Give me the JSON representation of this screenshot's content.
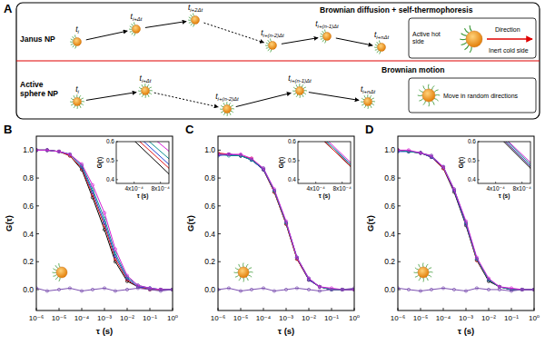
{
  "diagram": {
    "label": "A",
    "time_symbol": "t",
    "rows": [
      {
        "name": "Janus NP",
        "process": "Brownian diffusion + self-thermophoresis",
        "times": [
          "i",
          "i+Δt",
          "i+2Δt",
          "i+(n-2)Δt",
          "i+(n-1)Δt",
          "i+nΔt"
        ],
        "key": [
          "Active hot side",
          "Direction",
          "Inert cold side"
        ]
      },
      {
        "name": "Active sphere NP",
        "process": "Brownian motion",
        "times": [
          "i",
          "i+Δt",
          "i+(n-2)Δt",
          "i+(n-1)Δt",
          "i+nΔt"
        ],
        "key": [
          "Move in random directions"
        ]
      }
    ]
  },
  "chart_data": [
    {
      "type": "line",
      "title": "B",
      "x_label": "τ (s)",
      "y_label": "G(τ)",
      "log": "x",
      "marker": "circle",
      "x": [
        1e-06,
        3e-06,
        1e-05,
        3e-05,
        0.0001,
        0.0003,
        0.001,
        0.003,
        0.01,
        0.03,
        0.1,
        0.3,
        1
      ],
      "xlim": [
        1e-06,
        1
      ],
      "xticks": [
        {
          "value": 1e-06,
          "label": "10⁻⁶"
        },
        {
          "value": 1e-05,
          "label": "10⁻⁵"
        },
        {
          "value": 0.0001,
          "label": "10⁻⁴"
        },
        {
          "value": 0.001,
          "label": "10⁻³"
        },
        {
          "value": 0.01,
          "label": "10⁻²"
        },
        {
          "value": 0.1,
          "label": "10⁻¹"
        },
        {
          "value": 1,
          "label": "10⁰"
        }
      ],
      "ylim": [
        -0.15,
        1.1
      ],
      "yticks": [
        {
          "value": 0,
          "label": "0.0"
        },
        0.2,
        0.4,
        0.6,
        0.8,
        {
          "value": 1,
          "label": "1.0"
        }
      ],
      "series": [
        {
          "color": "#000000",
          "values": [
            1.0,
            1.0,
            0.99,
            0.96,
            0.86,
            0.66,
            0.43,
            0.2,
            0.06,
            0.02,
            0.0,
            0.0,
            0.0
          ]
        },
        {
          "color": "#e41a1c",
          "values": [
            1.0,
            1.0,
            0.99,
            0.96,
            0.87,
            0.68,
            0.46,
            0.22,
            0.07,
            0.02,
            0.0,
            0.0,
            0.0
          ]
        },
        {
          "color": "#1f3fd6",
          "values": [
            1.0,
            1.0,
            0.99,
            0.97,
            0.88,
            0.7,
            0.48,
            0.24,
            0.08,
            0.02,
            0.01,
            0.0,
            0.0
          ]
        },
        {
          "color": "#0a8f8f",
          "values": [
            1.0,
            1.0,
            0.99,
            0.97,
            0.89,
            0.72,
            0.51,
            0.26,
            0.09,
            0.03,
            0.01,
            0.0,
            0.0
          ]
        },
        {
          "color": "#d61fd6",
          "values": [
            1.0,
            1.0,
            0.99,
            0.97,
            0.9,
            0.75,
            0.55,
            0.29,
            0.1,
            0.03,
            0.01,
            0.0,
            0.0
          ]
        },
        {
          "color": "#7b4fb0",
          "values": [
            0.01,
            -0.01,
            0.0,
            0.01,
            -0.01,
            0.0,
            0.01,
            -0.01,
            0.0,
            0.01,
            0.0,
            -0.01,
            0.0
          ]
        }
      ],
      "inset": {
        "x_label": "τ (s)",
        "y_label": "G(τ)",
        "log": "x",
        "xlim": [
          0.00025,
          0.001
        ],
        "ylim": [
          0.38,
          0.6
        ],
        "xticks": [
          {
            "value": 0.0004,
            "label": "4x10⁻⁴"
          },
          {
            "value": 0.0008,
            "label": "8x10⁻⁴"
          }
        ],
        "yticks": [
          0.4,
          0.5,
          0.6
        ]
      }
    },
    {
      "type": "line",
      "title": "C",
      "x_label": "τ (s)",
      "y_label": "G(τ)",
      "log": "x",
      "marker": "circle",
      "x": [
        1e-06,
        3e-06,
        1e-05,
        3e-05,
        0.0001,
        0.0003,
        0.001,
        0.003,
        0.01,
        0.03,
        0.1,
        0.3,
        1
      ],
      "xlim": [
        1e-06,
        1
      ],
      "xticks": [
        {
          "value": 1e-06,
          "label": "10⁻⁶"
        },
        {
          "value": 1e-05,
          "label": "10⁻⁵"
        },
        {
          "value": 0.0001,
          "label": "10⁻⁴"
        },
        {
          "value": 0.001,
          "label": "10⁻³"
        },
        {
          "value": 0.01,
          "label": "10⁻²"
        },
        {
          "value": 0.1,
          "label": "10⁻¹"
        },
        {
          "value": 1,
          "label": "10⁰"
        }
      ],
      "ylim": [
        -0.15,
        1.1
      ],
      "yticks": [
        {
          "value": 0,
          "label": "0.0"
        },
        0.2,
        0.4,
        0.6,
        0.8,
        {
          "value": 1,
          "label": "1.0"
        }
      ],
      "series": [
        {
          "color": "#000000",
          "values": [
            0.97,
            0.97,
            0.96,
            0.93,
            0.86,
            0.7,
            0.47,
            0.22,
            0.07,
            0.02,
            0.0,
            0.0,
            0.0
          ]
        },
        {
          "color": "#e41a1c",
          "values": [
            0.98,
            0.97,
            0.96,
            0.94,
            0.86,
            0.7,
            0.47,
            0.22,
            0.07,
            0.02,
            0.0,
            0.0,
            0.0
          ]
        },
        {
          "color": "#1f3fd6",
          "values": [
            0.96,
            0.97,
            0.96,
            0.93,
            0.86,
            0.71,
            0.48,
            0.23,
            0.07,
            0.02,
            0.0,
            0.0,
            0.0
          ]
        },
        {
          "color": "#0a8f8f",
          "values": [
            0.97,
            0.96,
            0.96,
            0.93,
            0.87,
            0.71,
            0.48,
            0.23,
            0.08,
            0.02,
            0.0,
            0.0,
            0.0
          ]
        },
        {
          "color": "#d61fd6",
          "values": [
            0.97,
            0.97,
            0.97,
            0.94,
            0.87,
            0.72,
            0.49,
            0.23,
            0.08,
            0.02,
            0.01,
            0.0,
            0.0
          ]
        },
        {
          "color": "#7b4fb0",
          "values": [
            0.0,
            0.01,
            -0.01,
            0.0,
            0.01,
            -0.01,
            0.0,
            0.01,
            0.0,
            -0.01,
            0.0,
            0.0,
            0.01
          ]
        }
      ],
      "inset": {
        "x_label": "τ (s)",
        "y_label": "G(τ)",
        "log": "x",
        "xlim": [
          0.00025,
          0.001
        ],
        "ylim": [
          0.38,
          0.6
        ],
        "xticks": [
          {
            "value": 0.0004,
            "label": "4x10⁻⁴"
          },
          {
            "value": 0.0008,
            "label": "8x10⁻⁴"
          }
        ],
        "yticks": [
          0.4,
          0.5,
          0.6
        ]
      }
    },
    {
      "type": "line",
      "title": "D",
      "x_label": "τ (s)",
      "y_label": "G(τ)",
      "log": "x",
      "marker": "circle",
      "x": [
        1e-06,
        3e-06,
        1e-05,
        3e-05,
        0.0001,
        0.0003,
        0.001,
        0.003,
        0.01,
        0.03,
        0.1,
        0.3,
        1
      ],
      "xlim": [
        1e-06,
        1
      ],
      "xticks": [
        {
          "value": 1e-06,
          "label": "10⁻⁶"
        },
        {
          "value": 1e-05,
          "label": "10⁻⁵"
        },
        {
          "value": 0.0001,
          "label": "10⁻⁴"
        },
        {
          "value": 0.001,
          "label": "10⁻³"
        },
        {
          "value": 0.01,
          "label": "10⁻²"
        },
        {
          "value": 0.1,
          "label": "10⁻¹"
        },
        {
          "value": 1,
          "label": "10⁰"
        }
      ],
      "ylim": [
        -0.15,
        1.1
      ],
      "yticks": [
        {
          "value": 0,
          "label": "0.0"
        },
        0.2,
        0.4,
        0.6,
        0.8,
        {
          "value": 1,
          "label": "1.0"
        }
      ],
      "series": [
        {
          "color": "#000000",
          "values": [
            1.0,
            0.99,
            0.98,
            0.95,
            0.87,
            0.7,
            0.46,
            0.21,
            0.06,
            0.02,
            0.0,
            0.0,
            0.0
          ]
        },
        {
          "color": "#e41a1c",
          "values": [
            1.0,
            0.99,
            0.98,
            0.95,
            0.87,
            0.71,
            0.47,
            0.21,
            0.07,
            0.02,
            0.0,
            0.0,
            0.0
          ]
        },
        {
          "color": "#1f3fd6",
          "values": [
            0.99,
            0.99,
            0.98,
            0.95,
            0.88,
            0.71,
            0.47,
            0.22,
            0.07,
            0.02,
            0.0,
            0.0,
            0.0
          ]
        },
        {
          "color": "#0a8f8f",
          "values": [
            1.0,
            0.99,
            0.98,
            0.96,
            0.88,
            0.72,
            0.48,
            0.22,
            0.07,
            0.02,
            0.0,
            0.0,
            0.0
          ]
        },
        {
          "color": "#d61fd6",
          "values": [
            1.0,
            1.0,
            0.98,
            0.96,
            0.88,
            0.72,
            0.49,
            0.23,
            0.08,
            0.02,
            0.01,
            0.0,
            0.0
          ]
        },
        {
          "color": "#7b4fb0",
          "values": [
            0.01,
            0.0,
            -0.01,
            0.0,
            0.01,
            0.0,
            -0.01,
            0.01,
            0.0,
            0.0,
            -0.01,
            0.0,
            0.0
          ]
        }
      ],
      "inset": {
        "x_label": "τ (s)",
        "y_label": "G(τ)",
        "log": "x",
        "xlim": [
          0.00025,
          0.001
        ],
        "ylim": [
          0.38,
          0.6
        ],
        "xticks": [
          {
            "value": 0.0004,
            "label": "4x10⁻⁴"
          },
          {
            "value": 0.0008,
            "label": "8x10⁻⁴"
          }
        ],
        "yticks": [
          0.4,
          0.5,
          0.6
        ]
      }
    }
  ]
}
